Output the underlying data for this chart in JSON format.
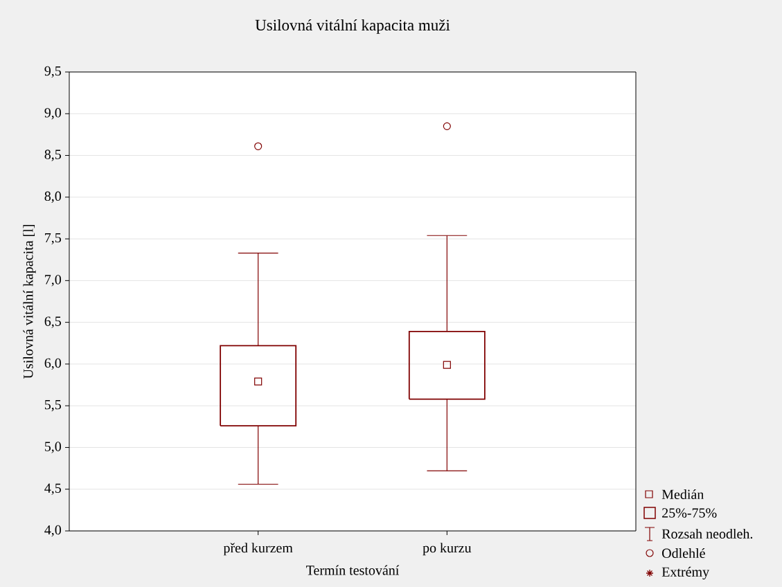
{
  "chart_data": {
    "type": "box",
    "title": "Usilovná vitální kapacita muži",
    "xlabel": "Termín testování",
    "ylabel": "Usilovná vitální kapacita [l]",
    "categories": [
      "před kurzem",
      "po kurzu"
    ],
    "series": [
      {
        "color": "#800000",
        "boxes": [
          {
            "low": 4.56,
            "q1": 5.26,
            "median": 5.79,
            "q3": 6.22,
            "high": 7.33,
            "outliers": [
              8.61
            ]
          },
          {
            "low": 4.72,
            "q1": 5.58,
            "median": 5.99,
            "q3": 6.39,
            "high": 7.54,
            "outliers": [
              8.85
            ]
          }
        ]
      }
    ],
    "ylim": [
      4.0,
      9.5
    ],
    "yticks": [
      {
        "value": 4.0,
        "label": "4,0"
      },
      {
        "value": 4.5,
        "label": "4,5"
      },
      {
        "value": 5.0,
        "label": "5,0"
      },
      {
        "value": 5.5,
        "label": "5,5"
      },
      {
        "value": 6.0,
        "label": "6,0"
      },
      {
        "value": 6.5,
        "label": "6,5"
      },
      {
        "value": 7.0,
        "label": "7,0"
      },
      {
        "value": 7.5,
        "label": "7,5"
      },
      {
        "value": 8.0,
        "label": "8,0"
      },
      {
        "value": 8.5,
        "label": "8,5"
      },
      {
        "value": 9.0,
        "label": "9,0"
      },
      {
        "value": 9.5,
        "label": "9,5"
      }
    ],
    "grid": "y",
    "annotations": [
      "Medián",
      "25%-75%",
      "Rozsah neodleh.",
      "Odlehlé",
      "Extrémy"
    ]
  }
}
